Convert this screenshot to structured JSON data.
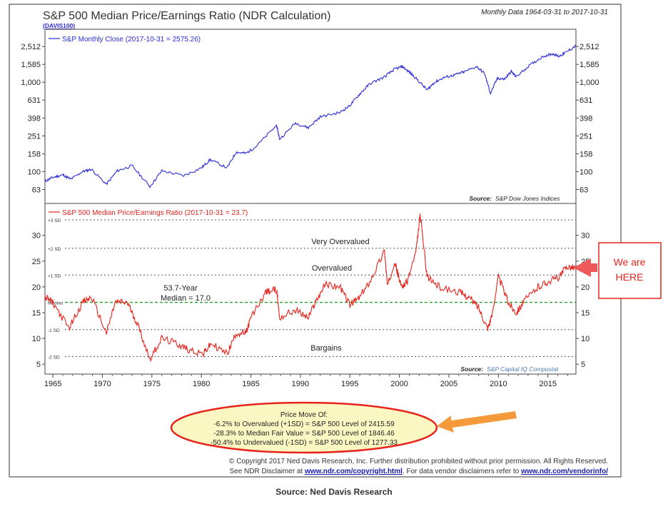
{
  "header": {
    "title": "S&P 500 Median Price/Earnings Ratio (NDR Calculation)",
    "code": "(DAVIS100)",
    "range_note": "Monthly Data 1964-03-31 to 2017-10-31"
  },
  "chart_data": [
    {
      "type": "line",
      "name": "S&P 500 Monthly Close",
      "legend": "S&P Monthly Close (2017-10-31 = 2575.26)",
      "yscale": "log",
      "yticks": [
        "2,512",
        "1,585",
        "1,000",
        "631",
        "398",
        "251",
        "158",
        "100",
        "63"
      ],
      "ytick_values": [
        2512,
        1585,
        1000,
        631,
        398,
        251,
        158,
        100,
        63
      ],
      "ylim": [
        50,
        3200
      ],
      "xlim": [
        1964.2,
        2017.83
      ],
      "source": "S&P Dow Jones Indices",
      "color": "#2b2bd9",
      "x": [
        1964.2,
        1965.0,
        1966.0,
        1966.8,
        1968.0,
        1968.9,
        1970.4,
        1971.5,
        1973.0,
        1974.8,
        1976.0,
        1978.2,
        1980.0,
        1980.9,
        1982.6,
        1983.5,
        1984.5,
        1985.5,
        1987.6,
        1987.9,
        1989.5,
        1990.8,
        1992.0,
        1994.0,
        1995.0,
        1996.0,
        1997.0,
        1998.5,
        1999.5,
        2000.3,
        2001.0,
        2001.7,
        2002.8,
        2003.5,
        2004.5,
        2005.5,
        2006.5,
        2007.8,
        2008.6,
        2009.2,
        2009.9,
        2010.6,
        2011.3,
        2011.8,
        2013.0,
        2014.5,
        2015.5,
        2016.1,
        2016.8,
        2017.83
      ],
      "y": [
        78,
        86,
        92,
        82,
        100,
        106,
        72,
        102,
        116,
        68,
        102,
        90,
        110,
        136,
        110,
        165,
        160,
        190,
        330,
        230,
        350,
        310,
        410,
        460,
        550,
        740,
        960,
        1150,
        1400,
        1500,
        1300,
        1100,
        820,
        990,
        1130,
        1200,
        1300,
        1500,
        1250,
        750,
        1110,
        1080,
        1320,
        1150,
        1500,
        1950,
        2080,
        1950,
        2150,
        2575
      ]
    },
    {
      "type": "line",
      "name": "S&P 500 Median Price/Earnings Ratio",
      "legend": "S&P 500 Median Price/Earnings Ratio (2017-10-31 = 23.7)",
      "yticks": [
        "30",
        "25",
        "20",
        "15",
        "10",
        "5"
      ],
      "ytick_values": [
        30,
        25,
        20,
        15,
        10,
        5
      ],
      "ylim": [
        3.5,
        35.5
      ],
      "xlim": [
        1964.2,
        2017.83
      ],
      "source": "S&P Capital IQ Compustat",
      "color": "#e8231c",
      "x": [
        1964.2,
        1965.0,
        1966.6,
        1968.0,
        1968.9,
        1970.4,
        1971.3,
        1972.5,
        1973.5,
        1974.8,
        1976.0,
        1977.5,
        1978.5,
        1980.2,
        1981.0,
        1982.6,
        1983.5,
        1984.5,
        1985.0,
        1986.5,
        1987.6,
        1987.9,
        1989.5,
        1990.8,
        1991.5,
        1992.5,
        1994.0,
        1995.0,
        1996.0,
        1997.0,
        1998.5,
        1998.8,
        1999.5,
        2000.2,
        2000.8,
        2001.7,
        2002.1,
        2002.8,
        2004.0,
        2006.0,
        2007.0,
        2008.0,
        2008.9,
        2009.3,
        2010.0,
        2011.0,
        2011.8,
        2012.5,
        2014.0,
        2015.0,
        2016.2,
        2016.9,
        2017.83
      ],
      "y": [
        18,
        17,
        12,
        17,
        18,
        11,
        17,
        17,
        13,
        6,
        10,
        9,
        8,
        7,
        9,
        7,
        11,
        11,
        14,
        19,
        19.5,
        14,
        15.5,
        14,
        17,
        20.5,
        20,
        16.5,
        18,
        21,
        27,
        20,
        25,
        20,
        21,
        27,
        34,
        22,
        20,
        19,
        18,
        16,
        12,
        14,
        22,
        17,
        15,
        17,
        20,
        21,
        22,
        24,
        23.7
      ],
      "reference_lines": [
        {
          "label": "+3 SD",
          "value": 33
        },
        {
          "label": "+2 SD",
          "value": 27.5
        },
        {
          "label": "+1 SD",
          "value": 22.3
        },
        {
          "label": "Median",
          "value": 17.0
        },
        {
          "label": "-1 SD",
          "value": 11.7
        },
        {
          "label": "-2 SD",
          "value": 6.5
        }
      ]
    }
  ],
  "annotations": {
    "very_overvalued": "Very Overvalued",
    "overvalued": "Overvalued",
    "bargains": "Bargains",
    "median_line1": "53.7-Year",
    "median_line2": "Median = 17.0",
    "source_label": "Source:",
    "we_are_here_line1": "We are",
    "we_are_here_line2": "HERE"
  },
  "x_axis": {
    "ticks": [
      "1965",
      "1970",
      "1975",
      "1980",
      "1985",
      "1990",
      "1995",
      "2000",
      "2005",
      "2010",
      "2015"
    ],
    "tick_values": [
      1965,
      1970,
      1975,
      1980,
      1985,
      1990,
      1995,
      2000,
      2005,
      2010,
      2015
    ]
  },
  "price_move": {
    "title": "Price Move Of:",
    "lines": [
      "-6.2% to Overvalued (+1SD) = S&P 500 Level of 2415.59",
      "-28.3% to Median Fair Value = S&P 500 Level of 1846.46",
      "-50.4% to Undervalued (-1SD) = S&P 500 Level of 1277.33"
    ]
  },
  "footer": {
    "copyright": "© Copyright 2017 Ned Davis Research, Inc. Further distribution prohibited without prior permission. All Rights Reserved.",
    "disclaimer_pre": "See NDR Disclaimer at ",
    "disclaimer_link1": "www.ndr.com/copyright.html",
    "disclaimer_mid": ". For data vendor disclaimers refer to ",
    "disclaimer_link2": "www.ndr.com/vendorinfo/",
    "source_caption": "Source: Ned Davis Research"
  },
  "colors": {
    "blue_series": "#2b2bd9",
    "red_series": "#e8231c",
    "median_line": "#22a022",
    "ellipse_fill": "#fbf7c3",
    "ellipse_stroke": "#e8231c",
    "arrow_orange": "#f59a3a",
    "arrow_red": "#ee5a5a",
    "link_blue": "#1a1ab0"
  }
}
